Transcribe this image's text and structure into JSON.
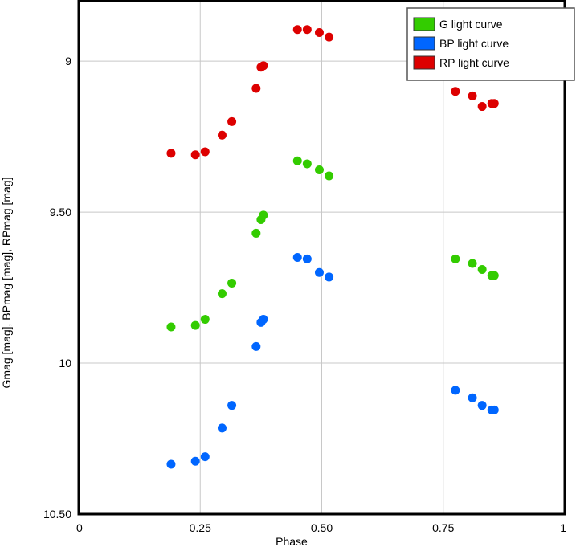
{
  "chart_data": {
    "type": "scatter",
    "title": "",
    "xlabel": "Phase",
    "ylabel": "Gmag [mag], BPmag [mag], RPmag [mag]",
    "xlim": [
      0,
      1
    ],
    "ylim": [
      10.5,
      8.8
    ],
    "y_inverted": true,
    "x_ticks": [
      0,
      0.25,
      0.5,
      0.75,
      1
    ],
    "x_tick_labels": [
      "0",
      "0.25",
      "0.50",
      "0.75",
      "1"
    ],
    "y_ticks": [
      9,
      9.5,
      10,
      10.5
    ],
    "y_tick_labels": [
      "9",
      "9.50",
      "10",
      "10.50"
    ],
    "grid": true,
    "legend_position": "top-right",
    "series": [
      {
        "name": "G light curve",
        "color": "#33cc00",
        "x": [
          0.19,
          0.24,
          0.26,
          0.295,
          0.315,
          0.365,
          0.375,
          0.38,
          0.45,
          0.47,
          0.495,
          0.515,
          0.775,
          0.81,
          0.83,
          0.85,
          0.855
        ],
        "y": [
          9.88,
          9.875,
          9.855,
          9.77,
          9.735,
          9.57,
          9.525,
          9.51,
          9.33,
          9.34,
          9.36,
          9.38,
          9.655,
          9.67,
          9.69,
          9.71,
          9.71
        ]
      },
      {
        "name": "BP light curve",
        "color": "#0066ff",
        "x": [
          0.19,
          0.24,
          0.26,
          0.295,
          0.315,
          0.365,
          0.375,
          0.38,
          0.45,
          0.47,
          0.495,
          0.515,
          0.775,
          0.81,
          0.83,
          0.85,
          0.855
        ],
        "y": [
          10.335,
          10.325,
          10.31,
          10.215,
          10.14,
          9.945,
          9.865,
          9.855,
          9.65,
          9.655,
          9.7,
          9.715,
          10.09,
          10.115,
          10.14,
          10.155,
          10.155
        ]
      },
      {
        "name": "RP light curve",
        "color": "#dd0000",
        "x": [
          0.19,
          0.24,
          0.26,
          0.295,
          0.315,
          0.365,
          0.375,
          0.38,
          0.45,
          0.47,
          0.495,
          0.515,
          0.775,
          0.81,
          0.83,
          0.85,
          0.855
        ],
        "y": [
          9.305,
          9.31,
          9.3,
          9.245,
          9.2,
          9.09,
          9.02,
          9.015,
          8.895,
          8.895,
          8.905,
          8.92,
          9.1,
          9.115,
          9.15,
          9.14,
          9.14
        ]
      }
    ]
  }
}
